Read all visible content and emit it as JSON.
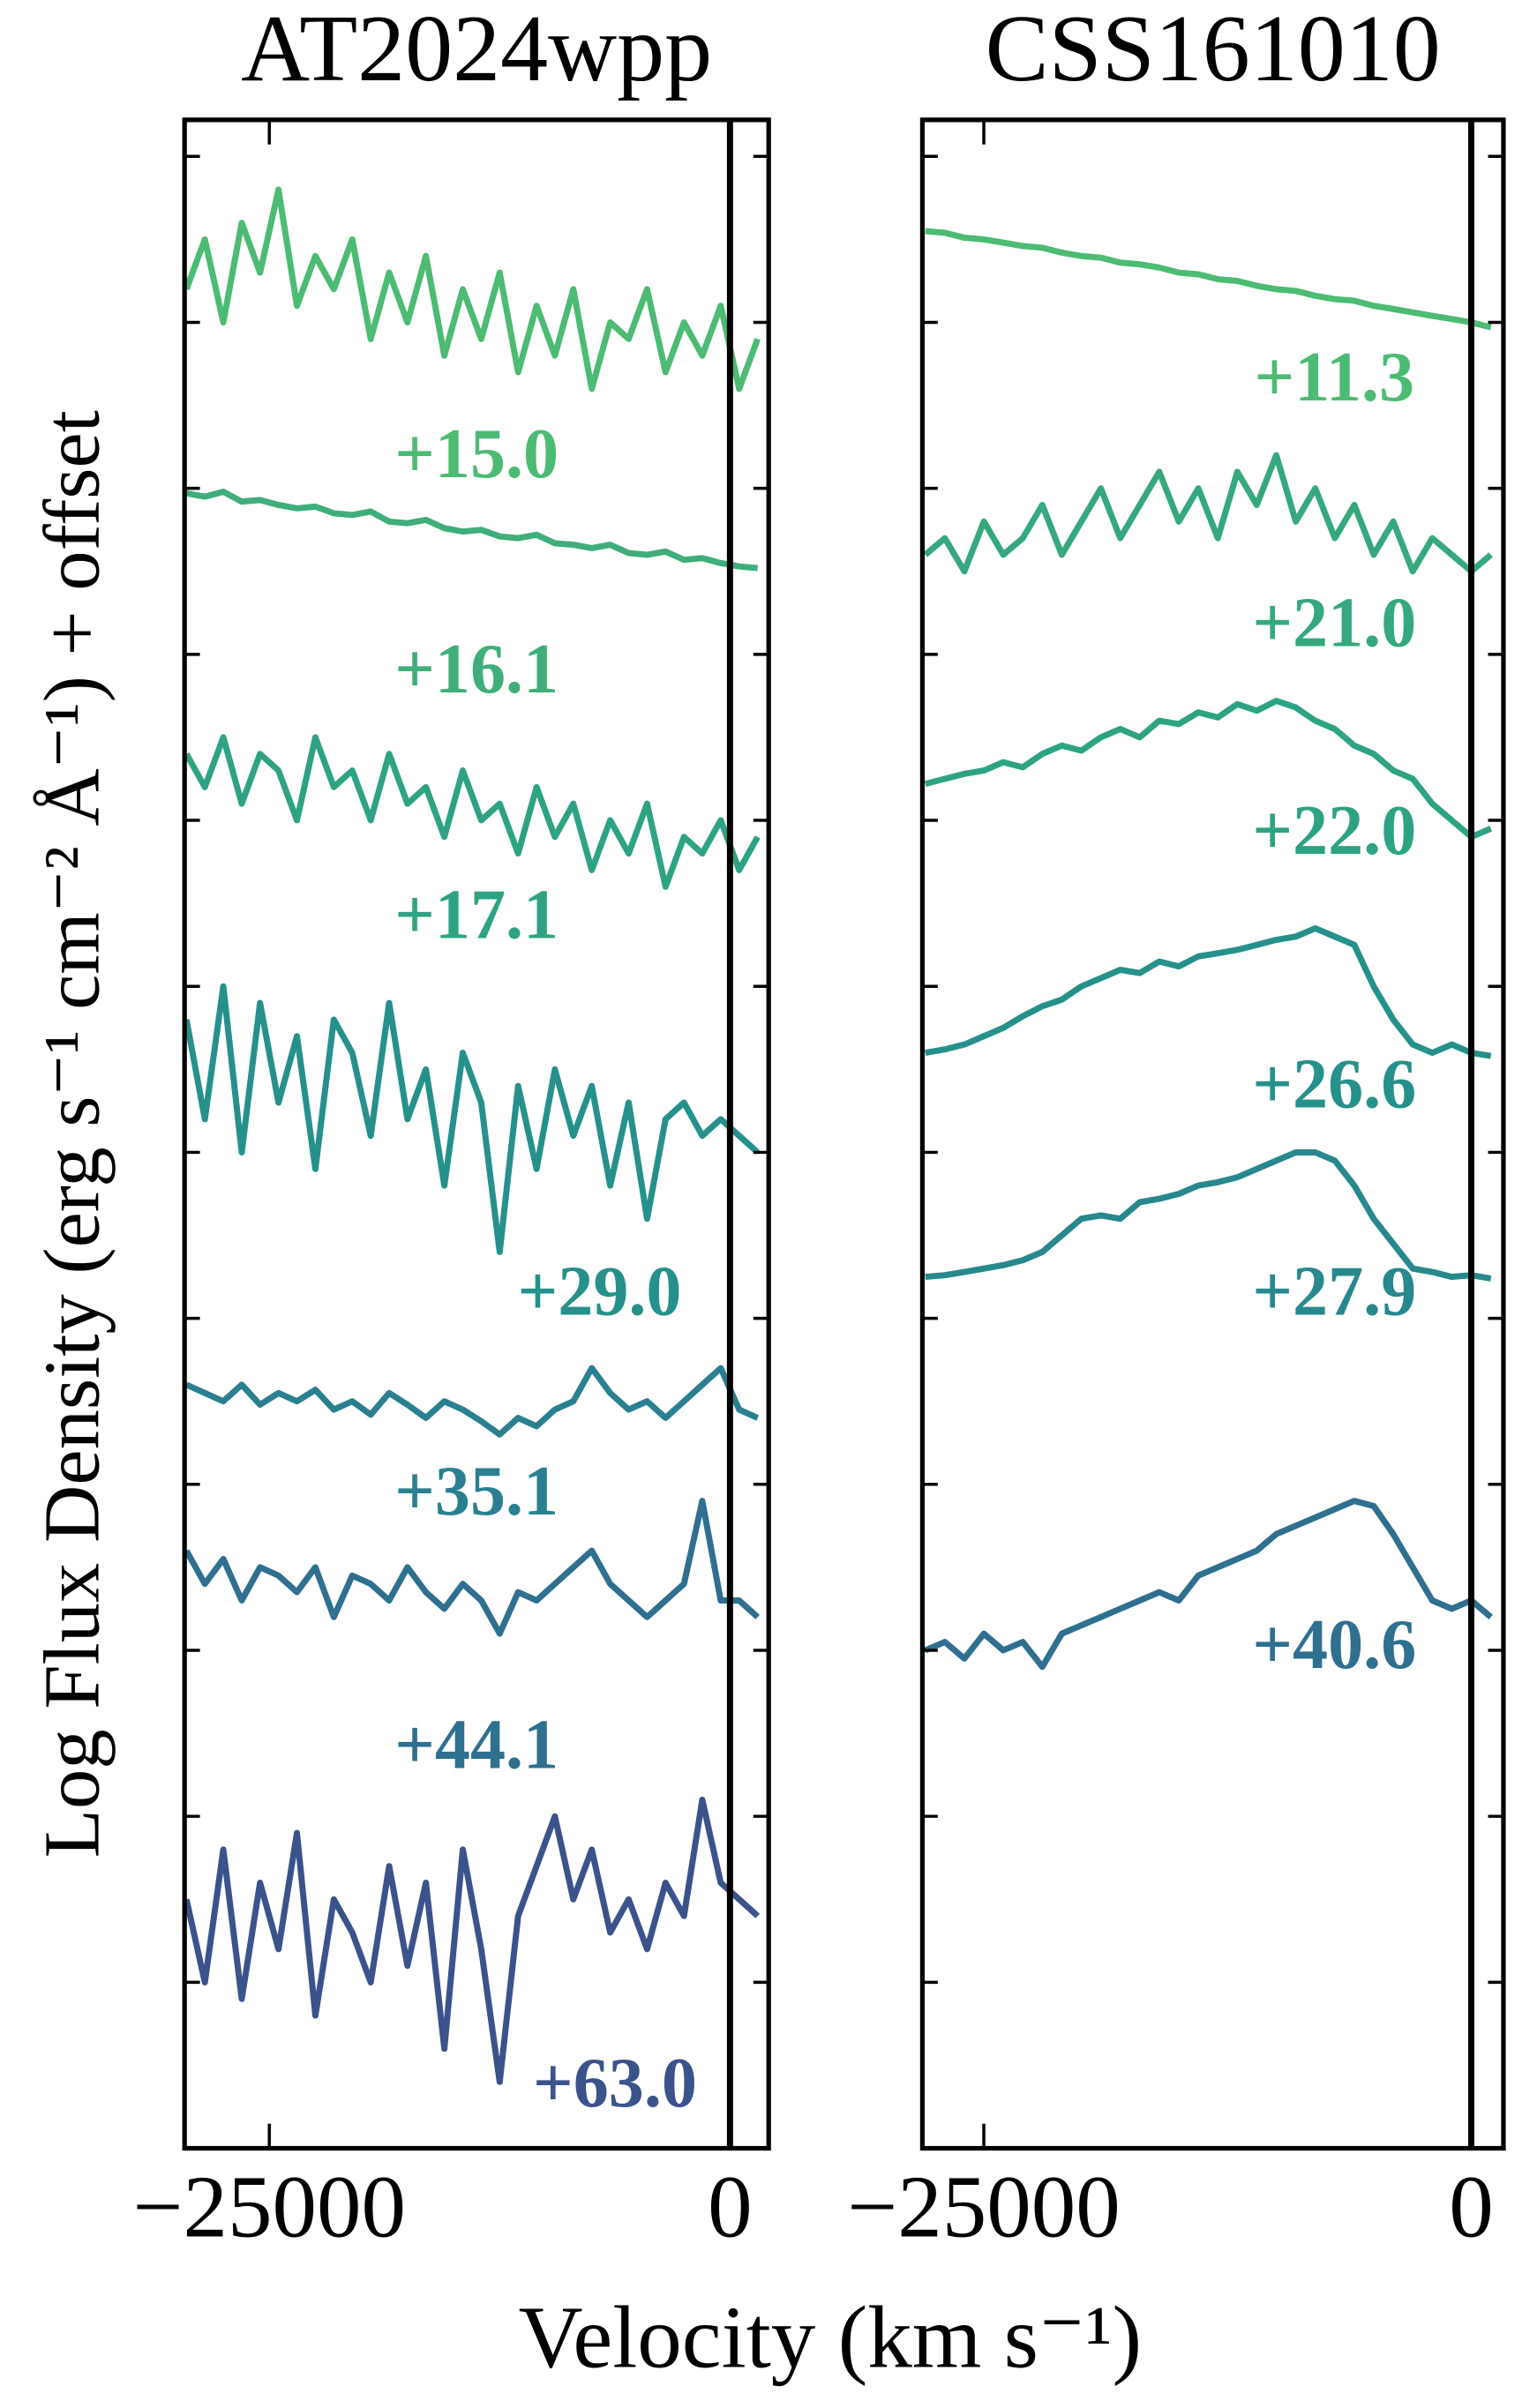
{
  "figure": {
    "xlabel": "Velocity (km s⁻¹)",
    "ylabel": "Log Flux Density (erg s⁻¹ cm⁻² Å⁻¹) + offset"
  },
  "chart_data": [
    {
      "type": "line",
      "title": "AT2024wpp",
      "x": [
        -29500,
        -28500,
        -27500,
        -26500,
        -25500,
        -24500,
        -23500,
        -22500,
        -21500,
        -20500,
        -19500,
        -18500,
        -17500,
        -16500,
        -15500,
        -14500,
        -13500,
        -12500,
        -11500,
        -10500,
        -9500,
        -8500,
        -7500,
        -6500,
        -5500,
        -4500,
        -3500,
        -2500,
        -1500,
        -500,
        500,
        1500
      ],
      "xlim": [
        -29600,
        2100
      ],
      "xticks": [
        {
          "value": -25000,
          "label": "−25000"
        },
        0
      ],
      "ylim": [
        0,
        12.22
      ],
      "yticks": [
        1,
        2,
        3,
        4,
        5,
        6,
        7,
        8,
        9,
        10,
        11,
        12
      ],
      "vline": 0,
      "series": [
        {
          "name": "+15.0",
          "color": "#4cbb73",
          "values": [
            11.2,
            11.5,
            11.0,
            11.6,
            11.3,
            11.8,
            11.1,
            11.4,
            11.2,
            11.5,
            10.9,
            11.3,
            11.0,
            11.4,
            10.8,
            11.2,
            10.9,
            11.3,
            10.7,
            11.1,
            10.8,
            11.2,
            10.6,
            11.0,
            10.9,
            11.2,
            10.7,
            11.0,
            10.8,
            11.1,
            10.6,
            10.9
          ]
        },
        {
          "name": "+16.1",
          "color": "#3fae7a",
          "values": [
            9.97,
            9.95,
            9.98,
            9.92,
            9.93,
            9.9,
            9.88,
            9.89,
            9.85,
            9.84,
            9.86,
            9.8,
            9.79,
            9.81,
            9.76,
            9.74,
            9.75,
            9.71,
            9.7,
            9.72,
            9.67,
            9.66,
            9.64,
            9.66,
            9.61,
            9.6,
            9.62,
            9.57,
            9.58,
            9.55,
            9.53,
            9.52
          ]
        },
        {
          "name": "+17.1",
          "color": "#2ea383",
          "values": [
            8.4,
            8.2,
            8.5,
            8.1,
            8.4,
            8.3,
            8.0,
            8.5,
            8.2,
            8.3,
            8.0,
            8.4,
            8.1,
            8.2,
            7.9,
            8.3,
            8.0,
            8.1,
            7.8,
            8.2,
            7.9,
            8.1,
            7.7,
            8.0,
            7.8,
            8.1,
            7.6,
            7.9,
            7.8,
            8.0,
            7.7,
            7.9
          ]
        },
        {
          "name": "+29.0",
          "color": "#25918a",
          "values": [
            6.8,
            6.2,
            7.0,
            6.0,
            6.9,
            6.3,
            6.7,
            5.9,
            6.8,
            6.6,
            6.1,
            6.9,
            6.2,
            6.5,
            5.8,
            6.6,
            6.3,
            5.4,
            6.4,
            5.9,
            6.5,
            6.1,
            6.4,
            5.8,
            6.3,
            5.6,
            6.2,
            6.3,
            6.1,
            6.2,
            6.1,
            6.0
          ]
        },
        {
          "name": "+35.1",
          "color": "#2a8090",
          "values": [
            4.6,
            4.55,
            4.5,
            4.6,
            4.48,
            4.55,
            4.5,
            4.57,
            4.45,
            4.5,
            4.42,
            4.55,
            4.48,
            4.4,
            4.5,
            4.45,
            4.38,
            4.3,
            4.4,
            4.35,
            4.45,
            4.5,
            4.7,
            4.55,
            4.45,
            4.5,
            4.4,
            4.5,
            4.6,
            4.7,
            4.45,
            4.4
          ]
        },
        {
          "name": "+44.1",
          "color": "#2f6f8f",
          "values": [
            3.6,
            3.4,
            3.55,
            3.3,
            3.5,
            3.45,
            3.35,
            3.5,
            3.2,
            3.45,
            3.4,
            3.3,
            3.5,
            3.35,
            3.25,
            3.4,
            3.3,
            3.1,
            3.35,
            3.3,
            3.4,
            3.5,
            3.6,
            3.4,
            3.3,
            3.2,
            3.3,
            3.4,
            3.9,
            3.3,
            3.3,
            3.2
          ]
        },
        {
          "name": "+63.0",
          "color": "#3b528b",
          "values": [
            1.5,
            1.0,
            1.8,
            0.9,
            1.6,
            1.2,
            1.9,
            0.8,
            1.5,
            1.3,
            1.0,
            1.7,
            1.1,
            1.6,
            0.6,
            1.8,
            1.2,
            0.4,
            1.4,
            1.7,
            2.0,
            1.5,
            1.8,
            1.3,
            1.5,
            1.2,
            1.6,
            1.4,
            2.1,
            1.6,
            1.5,
            1.4
          ]
        }
      ]
    },
    {
      "type": "line",
      "title": "CSS161010",
      "x": [
        -28000,
        -27000,
        -26000,
        -25000,
        -24000,
        -23000,
        -22000,
        -21000,
        -20000,
        -19000,
        -18000,
        -17000,
        -16000,
        -15000,
        -14000,
        -13000,
        -12000,
        -11000,
        -10000,
        -9000,
        -8000,
        -7000,
        -6000,
        -5000,
        -4000,
        -3000,
        -2000,
        -1000,
        0,
        1000
      ],
      "xlim": [
        -28150,
        1650
      ],
      "xticks": [
        {
          "value": -25000,
          "label": "−25000"
        },
        0
      ],
      "ylim": [
        0,
        12.22
      ],
      "yticks": [
        1,
        2,
        3,
        4,
        5,
        6,
        7,
        8,
        9,
        10,
        11,
        12
      ],
      "vline": 0,
      "series": [
        {
          "name": "+11.3",
          "color": "#4cbb73",
          "values": [
            11.55,
            11.54,
            11.51,
            11.5,
            11.48,
            11.46,
            11.45,
            11.42,
            11.4,
            11.39,
            11.36,
            11.35,
            11.33,
            11.3,
            11.29,
            11.26,
            11.25,
            11.22,
            11.2,
            11.19,
            11.16,
            11.14,
            11.13,
            11.1,
            11.08,
            11.06,
            11.04,
            11.02,
            11.0,
            10.97
          ]
        },
        {
          "name": "+21.0",
          "color": "#36a87e",
          "values": [
            9.6,
            9.7,
            9.5,
            9.8,
            9.6,
            9.7,
            9.9,
            9.6,
            9.8,
            10.0,
            9.7,
            9.9,
            10.1,
            9.8,
            10.0,
            9.7,
            10.1,
            9.9,
            10.2,
            9.8,
            10.0,
            9.7,
            9.9,
            9.6,
            9.8,
            9.5,
            9.7,
            9.6,
            9.5,
            9.6
          ]
        },
        {
          "name": "+22.0",
          "color": "#2ea383",
          "values": [
            8.22,
            8.25,
            8.28,
            8.3,
            8.35,
            8.32,
            8.4,
            8.45,
            8.42,
            8.5,
            8.55,
            8.5,
            8.6,
            8.58,
            8.65,
            8.62,
            8.7,
            8.66,
            8.72,
            8.68,
            8.6,
            8.55,
            8.45,
            8.4,
            8.3,
            8.25,
            8.1,
            8.0,
            7.9,
            7.95
          ]
        },
        {
          "name": "+26.6",
          "color": "#25918a",
          "values": [
            6.6,
            6.62,
            6.65,
            6.7,
            6.75,
            6.82,
            6.88,
            6.92,
            7.0,
            7.05,
            7.1,
            7.08,
            7.15,
            7.12,
            7.18,
            7.2,
            7.22,
            7.25,
            7.28,
            7.3,
            7.35,
            7.3,
            7.25,
            7.0,
            6.8,
            6.65,
            6.6,
            6.65,
            6.6,
            6.58
          ]
        },
        {
          "name": "+27.9",
          "color": "#27888d",
          "values": [
            5.25,
            5.26,
            5.28,
            5.3,
            5.32,
            5.35,
            5.4,
            5.5,
            5.6,
            5.62,
            5.6,
            5.7,
            5.72,
            5.75,
            5.8,
            5.82,
            5.85,
            5.9,
            5.95,
            6.0,
            6.0,
            5.95,
            5.8,
            5.6,
            5.45,
            5.3,
            5.28,
            5.25,
            5.26,
            5.24
          ]
        },
        {
          "name": "+40.6",
          "color": "#2f6f8f",
          "values": [
            3.0,
            3.05,
            2.95,
            3.1,
            3.0,
            3.05,
            2.9,
            3.1,
            3.15,
            3.2,
            3.25,
            3.3,
            3.35,
            3.3,
            3.45,
            3.5,
            3.55,
            3.6,
            3.7,
            3.75,
            3.8,
            3.85,
            3.9,
            3.87,
            3.7,
            3.5,
            3.3,
            3.25,
            3.3,
            3.2
          ]
        }
      ]
    }
  ]
}
